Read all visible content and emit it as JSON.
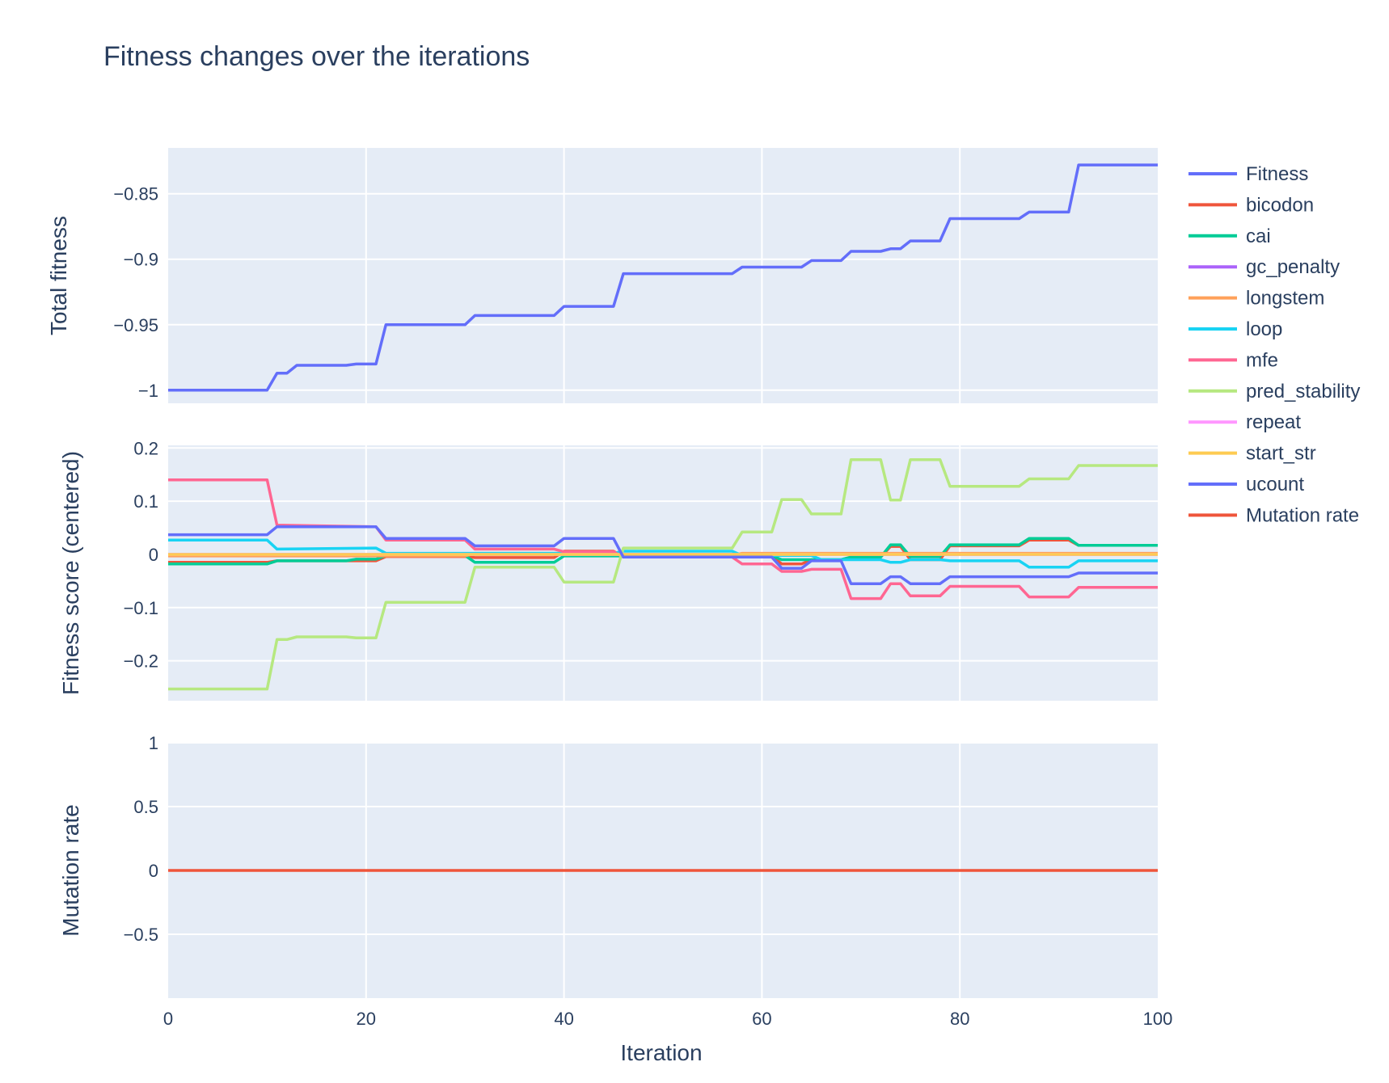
{
  "chart_data": {
    "type": "line",
    "title": "Fitness changes over the iterations",
    "xlabel": "Iteration",
    "xlim": [
      0,
      100
    ],
    "xticks": [
      0,
      20,
      40,
      60,
      80,
      100
    ],
    "grid": true,
    "legend_position": "right",
    "colors": {
      "plot_bg": "#e5ecf6",
      "grid": "#ffffff",
      "text": "#2a3f5f"
    },
    "panels": [
      {
        "id": "total",
        "ylabel": "Total fitness",
        "ylim": [
          -1.01,
          -0.815
        ],
        "yticks": [
          -0.85,
          -0.9,
          -0.95,
          -1
        ],
        "ytick_labels": [
          "−0.85",
          "−0.9",
          "−0.95",
          "−1"
        ],
        "series": [
          {
            "name": "Fitness",
            "color": "#636efa",
            "x": [
              0,
              10,
              11,
              12,
              13,
              18,
              19,
              21,
              22,
              30,
              31,
              39,
              40,
              45,
              46,
              57,
              58,
              64,
              65,
              68,
              69,
              72,
              73,
              74,
              75,
              78,
              79,
              86,
              87,
              91,
              92,
              100
            ],
            "y": [
              -1,
              -1,
              -0.987,
              -0.987,
              -0.981,
              -0.981,
              -0.98,
              -0.98,
              -0.95,
              -0.95,
              -0.943,
              -0.943,
              -0.936,
              -0.936,
              -0.911,
              -0.911,
              -0.906,
              -0.906,
              -0.901,
              -0.901,
              -0.894,
              -0.894,
              -0.892,
              -0.892,
              -0.886,
              -0.886,
              -0.869,
              -0.869,
              -0.864,
              -0.864,
              -0.828,
              -0.828
            ]
          }
        ]
      },
      {
        "id": "components",
        "ylabel": "Fitness score (centered)",
        "ylim": [
          -0.275,
          0.205
        ],
        "yticks": [
          0.2,
          0.1,
          0,
          -0.1,
          -0.2
        ],
        "ytick_labels": [
          "0.2",
          "0.1",
          "0",
          "−0.1",
          "−0.2"
        ],
        "series": [
          {
            "name": "bicodon",
            "color": "#ef553b",
            "x": [
              0,
              10,
              11,
              21,
              22,
              30,
              31,
              39,
              40,
              45,
              46,
              57,
              58,
              61,
              62,
              64,
              65,
              68,
              69,
              72,
              73,
              74,
              75,
              78,
              79,
              86,
              87,
              91,
              92,
              100
            ],
            "y": [
              -0.015,
              -0.015,
              -0.012,
              -0.012,
              -0.004,
              -0.004,
              -0.006,
              -0.006,
              0.006,
              0.006,
              -0.005,
              -0.005,
              -0.003,
              -0.003,
              -0.018,
              -0.018,
              -0.01,
              -0.01,
              -0.005,
              -0.005,
              0.015,
              0.015,
              -0.01,
              -0.01,
              0.016,
              0.016,
              0.027,
              0.027,
              0.017,
              0.017
            ]
          },
          {
            "name": "cai",
            "color": "#00cc96",
            "x": [
              0,
              10,
              11,
              18,
              19,
              21,
              22,
              30,
              31,
              39,
              40,
              45,
              46,
              57,
              58,
              61,
              62,
              68,
              69,
              72,
              73,
              74,
              75,
              78,
              79,
              86,
              87,
              91,
              92,
              100
            ],
            "y": [
              -0.018,
              -0.018,
              -0.012,
              -0.012,
              -0.009,
              -0.009,
              -0.002,
              -0.002,
              -0.015,
              -0.015,
              -0.003,
              -0.003,
              -0.003,
              -0.003,
              -0.003,
              -0.003,
              -0.01,
              -0.01,
              -0.005,
              -0.005,
              0.018,
              0.018,
              -0.004,
              -0.004,
              0.018,
              0.018,
              0.03,
              0.03,
              0.017,
              0.017
            ]
          },
          {
            "name": "gc_penalty",
            "color": "#ab63fa",
            "x": [
              0,
              100
            ],
            "y": [
              0,
              0
            ]
          },
          {
            "name": "longstem",
            "color": "#ffa15a",
            "x": [
              0,
              30,
              31,
              45,
              46,
              57,
              58,
              100
            ],
            "y": [
              -0.003,
              -0.003,
              0.002,
              0.002,
              -0.002,
              -0.002,
              0.002,
              0.002
            ]
          },
          {
            "name": "loop",
            "color": "#19d3f3",
            "x": [
              0,
              10,
              11,
              21,
              22,
              45,
              46,
              57,
              58,
              65,
              66,
              72,
              73,
              74,
              75,
              78,
              79,
              86,
              87,
              91,
              92,
              100
            ],
            "y": [
              0.027,
              0.027,
              0.01,
              0.012,
              0.002,
              0.002,
              0.006,
              0.006,
              -0.002,
              -0.002,
              -0.01,
              -0.01,
              -0.015,
              -0.015,
              -0.01,
              -0.01,
              -0.012,
              -0.012,
              -0.024,
              -0.024,
              -0.012,
              -0.012
            ]
          },
          {
            "name": "mfe",
            "color": "#ff6692",
            "x": [
              0,
              10,
              11,
              21,
              22,
              30,
              31,
              39,
              40,
              45,
              46,
              57,
              58,
              61,
              62,
              64,
              65,
              68,
              69,
              72,
              73,
              74,
              75,
              78,
              79,
              86,
              87,
              91,
              92,
              100
            ],
            "y": [
              0.14,
              0.14,
              0.055,
              0.052,
              0.027,
              0.027,
              0.01,
              0.01,
              0.005,
              0.005,
              -0.005,
              -0.005,
              -0.018,
              -0.018,
              -0.032,
              -0.032,
              -0.028,
              -0.028,
              -0.083,
              -0.083,
              -0.055,
              -0.055,
              -0.078,
              -0.078,
              -0.06,
              -0.06,
              -0.08,
              -0.08,
              -0.062,
              -0.062
            ]
          },
          {
            "name": "pred_stability",
            "color": "#b6e880",
            "x": [
              0,
              10,
              11,
              12,
              13,
              18,
              19,
              21,
              22,
              30,
              31,
              39,
              40,
              45,
              46,
              57,
              58,
              61,
              62,
              64,
              65,
              68,
              69,
              72,
              73,
              74,
              75,
              78,
              79,
              86,
              87,
              91,
              92,
              100
            ],
            "y": [
              -0.253,
              -0.253,
              -0.16,
              -0.16,
              -0.155,
              -0.155,
              -0.157,
              -0.157,
              -0.09,
              -0.09,
              -0.024,
              -0.024,
              -0.052,
              -0.052,
              0.012,
              0.012,
              0.042,
              0.042,
              0.103,
              0.103,
              0.076,
              0.076,
              0.178,
              0.178,
              0.102,
              0.102,
              0.178,
              0.178,
              0.128,
              0.128,
              0.142,
              0.142,
              0.167,
              0.167
            ]
          },
          {
            "name": "repeat",
            "color": "#ff97ff",
            "x": [
              0,
              100
            ],
            "y": [
              0,
              0
            ]
          },
          {
            "name": "start_str",
            "color": "#fecb52",
            "x": [
              0,
              100
            ],
            "y": [
              0,
              0
            ]
          },
          {
            "name": "ucount",
            "color": "#636efa",
            "x": [
              0,
              10,
              11,
              21,
              22,
              30,
              31,
              39,
              40,
              45,
              46,
              57,
              58,
              61,
              62,
              64,
              65,
              68,
              69,
              72,
              73,
              74,
              75,
              78,
              79,
              91,
              92,
              100
            ],
            "y": [
              0.037,
              0.037,
              0.052,
              0.052,
              0.03,
              0.03,
              0.016,
              0.016,
              0.03,
              0.03,
              -0.005,
              -0.005,
              -0.005,
              -0.005,
              -0.026,
              -0.026,
              -0.012,
              -0.012,
              -0.055,
              -0.055,
              -0.042,
              -0.042,
              -0.055,
              -0.055,
              -0.042,
              -0.042,
              -0.035,
              -0.035
            ]
          }
        ]
      },
      {
        "id": "mutation",
        "ylabel": "Mutation rate",
        "ylim": [
          -1,
          1
        ],
        "yticks": [
          1,
          0.5,
          0,
          -0.5
        ],
        "ytick_labels": [
          "1",
          "0.5",
          "0",
          "−0.5"
        ],
        "series": [
          {
            "name": "Mutation rate",
            "color": "#ef553b",
            "x": [
              0,
              100
            ],
            "y": [
              0,
              0
            ]
          }
        ]
      }
    ],
    "legend": [
      {
        "name": "Fitness",
        "color": "#636efa"
      },
      {
        "name": "bicodon",
        "color": "#ef553b"
      },
      {
        "name": "cai",
        "color": "#00cc96"
      },
      {
        "name": "gc_penalty",
        "color": "#ab63fa"
      },
      {
        "name": "longstem",
        "color": "#ffa15a"
      },
      {
        "name": "loop",
        "color": "#19d3f3"
      },
      {
        "name": "mfe",
        "color": "#ff6692"
      },
      {
        "name": "pred_stability",
        "color": "#b6e880"
      },
      {
        "name": "repeat",
        "color": "#ff97ff"
      },
      {
        "name": "start_str",
        "color": "#fecb52"
      },
      {
        "name": "ucount",
        "color": "#636efa"
      },
      {
        "name": "Mutation rate",
        "color": "#ef553b"
      }
    ]
  }
}
